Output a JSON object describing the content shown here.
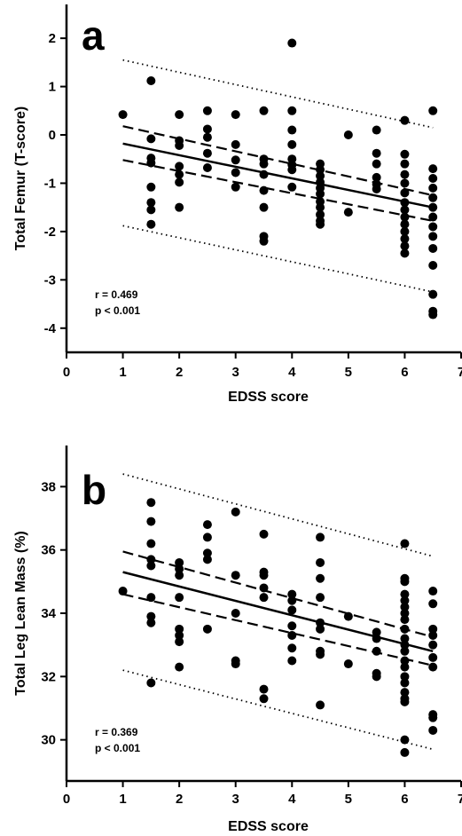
{
  "chart_data": [
    {
      "type": "scatter",
      "panel_label": "a",
      "xlabel": "EDSS score",
      "ylabel": "Total Femur (T-score)",
      "xlim": [
        0,
        7
      ],
      "ylim": [
        -4.5,
        2.7
      ],
      "xticks": [
        0,
        1,
        2,
        3,
        4,
        5,
        6,
        7
      ],
      "yticks": [
        -4,
        -3,
        -2,
        -1,
        0,
        1,
        2
      ],
      "grid": false,
      "annotation_r": "r = 0.469",
      "annotation_p": "p < 0.001",
      "points": [
        [
          1,
          0.42
        ],
        [
          1.5,
          1.12
        ],
        [
          1.5,
          -0.08
        ],
        [
          1.5,
          -0.48
        ],
        [
          1.5,
          -0.58
        ],
        [
          1.5,
          -1.08
        ],
        [
          1.5,
          -1.4
        ],
        [
          1.5,
          -1.55
        ],
        [
          1.5,
          -1.85
        ],
        [
          2,
          0.42
        ],
        [
          2,
          -0.12
        ],
        [
          2,
          -0.22
        ],
        [
          2,
          -0.65
        ],
        [
          2,
          -0.82
        ],
        [
          2,
          -0.98
        ],
        [
          2,
          -1.5
        ],
        [
          2.5,
          0.5
        ],
        [
          2.5,
          0.12
        ],
        [
          2.5,
          -0.05
        ],
        [
          2.5,
          -0.38
        ],
        [
          2.5,
          -0.68
        ],
        [
          3,
          0.42
        ],
        [
          3,
          -0.2
        ],
        [
          3,
          -0.52
        ],
        [
          3,
          -0.78
        ],
        [
          3,
          -1.08
        ],
        [
          3.5,
          0.5
        ],
        [
          3.5,
          -0.5
        ],
        [
          3.5,
          -0.6
        ],
        [
          3.5,
          -0.82
        ],
        [
          3.5,
          -1.15
        ],
        [
          3.5,
          -1.5
        ],
        [
          3.5,
          -2.1
        ],
        [
          3.5,
          -2.2
        ],
        [
          4,
          1.9
        ],
        [
          4,
          0.5
        ],
        [
          4,
          0.1
        ],
        [
          4,
          -0.2
        ],
        [
          4,
          -0.5
        ],
        [
          4,
          -0.62
        ],
        [
          4,
          -0.72
        ],
        [
          4,
          -1.08
        ],
        [
          4.5,
          -0.6
        ],
        [
          4.5,
          -0.72
        ],
        [
          4.5,
          -0.85
        ],
        [
          4.5,
          -0.98
        ],
        [
          4.5,
          -1.1
        ],
        [
          4.5,
          -1.22
        ],
        [
          4.5,
          -1.38
        ],
        [
          4.5,
          -1.5
        ],
        [
          4.5,
          -1.65
        ],
        [
          4.5,
          -1.78
        ],
        [
          4.5,
          -1.85
        ],
        [
          5,
          0.0
        ],
        [
          5,
          -1.6
        ],
        [
          5.5,
          0.1
        ],
        [
          5.5,
          -0.38
        ],
        [
          5.5,
          -0.6
        ],
        [
          5.5,
          -0.88
        ],
        [
          5.5,
          -1.02
        ],
        [
          5.5,
          -1.12
        ],
        [
          6,
          0.3
        ],
        [
          6,
          -0.4
        ],
        [
          6,
          -0.6
        ],
        [
          6,
          -0.82
        ],
        [
          6,
          -1.0
        ],
        [
          6,
          -1.2
        ],
        [
          6,
          -1.4
        ],
        [
          6,
          -1.55
        ],
        [
          6,
          -1.7
        ],
        [
          6,
          -1.85
        ],
        [
          6,
          -2.0
        ],
        [
          6,
          -2.15
        ],
        [
          6,
          -2.3
        ],
        [
          6,
          -2.45
        ],
        [
          6.5,
          0.5
        ],
        [
          6.5,
          -0.7
        ],
        [
          6.5,
          -0.9
        ],
        [
          6.5,
          -1.1
        ],
        [
          6.5,
          -1.3
        ],
        [
          6.5,
          -1.5
        ],
        [
          6.5,
          -1.7
        ],
        [
          6.5,
          -1.9
        ],
        [
          6.5,
          -2.1
        ],
        [
          6.5,
          -2.35
        ],
        [
          6.5,
          -2.7
        ],
        [
          6.5,
          -3.3
        ],
        [
          6.5,
          -3.65
        ],
        [
          6.5,
          -3.72
        ]
      ],
      "regression": {
        "x": [
          1,
          6.5
        ],
        "y": [
          -0.18,
          -1.5
        ]
      },
      "confidence_upper": {
        "x": [
          1,
          6.5
        ],
        "y": [
          0.18,
          -1.25
        ]
      },
      "confidence_lower": {
        "x": [
          1,
          6.5
        ],
        "y": [
          -0.52,
          -1.78
        ]
      },
      "prediction_upper": {
        "x": [
          1,
          6.5
        ],
        "y": [
          1.55,
          0.15
        ]
      },
      "prediction_lower": {
        "x": [
          1,
          6.5
        ],
        "y": [
          -1.88,
          -3.25
        ]
      }
    },
    {
      "type": "scatter",
      "panel_label": "b",
      "xlabel": "EDSS score",
      "ylabel": "Total Leg Lean Mass (%)",
      "xlim": [
        0,
        7
      ],
      "ylim": [
        28.7,
        39.3
      ],
      "xticks": [
        0,
        1,
        2,
        3,
        4,
        5,
        6,
        7
      ],
      "yticks": [
        30,
        32,
        34,
        36,
        38
      ],
      "grid": false,
      "annotation_r": "r = 0.369",
      "annotation_p": "p < 0.001",
      "points": [
        [
          1,
          34.7
        ],
        [
          1.5,
          37.5
        ],
        [
          1.5,
          36.9
        ],
        [
          1.5,
          36.2
        ],
        [
          1.5,
          35.7
        ],
        [
          1.5,
          35.5
        ],
        [
          1.5,
          34.5
        ],
        [
          1.5,
          33.9
        ],
        [
          1.5,
          33.7
        ],
        [
          1.5,
          31.8
        ],
        [
          2,
          35.6
        ],
        [
          2,
          35.4
        ],
        [
          2,
          35.2
        ],
        [
          2,
          34.5
        ],
        [
          2,
          33.5
        ],
        [
          2,
          33.3
        ],
        [
          2,
          33.1
        ],
        [
          2,
          32.3
        ],
        [
          2.5,
          36.8
        ],
        [
          2.5,
          36.4
        ],
        [
          2.5,
          35.9
        ],
        [
          2.5,
          35.7
        ],
        [
          2.5,
          33.5
        ],
        [
          3,
          37.2
        ],
        [
          3,
          35.2
        ],
        [
          3,
          34.0
        ],
        [
          3,
          32.5
        ],
        [
          3,
          32.4
        ],
        [
          3.5,
          36.5
        ],
        [
          3.5,
          35.3
        ],
        [
          3.5,
          35.2
        ],
        [
          3.5,
          34.8
        ],
        [
          3.5,
          34.5
        ],
        [
          3.5,
          31.6
        ],
        [
          3.5,
          31.3
        ],
        [
          4,
          34.6
        ],
        [
          4,
          34.4
        ],
        [
          4,
          34.1
        ],
        [
          4,
          33.6
        ],
        [
          4,
          33.3
        ],
        [
          4,
          32.9
        ],
        [
          4,
          32.5
        ],
        [
          4.5,
          36.4
        ],
        [
          4.5,
          35.6
        ],
        [
          4.5,
          35.1
        ],
        [
          4.5,
          34.5
        ],
        [
          4.5,
          33.7
        ],
        [
          4.5,
          33.5
        ],
        [
          4.5,
          32.8
        ],
        [
          4.5,
          32.7
        ],
        [
          4.5,
          31.1
        ],
        [
          5,
          33.9
        ],
        [
          5,
          32.4
        ],
        [
          5.5,
          33.4
        ],
        [
          5.5,
          33.2
        ],
        [
          5.5,
          32.8
        ],
        [
          5.5,
          32.0
        ],
        [
          5.5,
          32.1
        ],
        [
          6,
          36.2
        ],
        [
          6,
          35.1
        ],
        [
          6,
          35.0
        ],
        [
          6,
          34.6
        ],
        [
          6,
          34.4
        ],
        [
          6,
          34.2
        ],
        [
          6,
          34.0
        ],
        [
          6,
          33.8
        ],
        [
          6,
          33.5
        ],
        [
          6,
          33.2
        ],
        [
          6,
          33.0
        ],
        [
          6,
          32.8
        ],
        [
          6,
          32.5
        ],
        [
          6,
          32.3
        ],
        [
          6,
          32.0
        ],
        [
          6,
          31.8
        ],
        [
          6,
          31.5
        ],
        [
          6,
          31.3
        ],
        [
          6,
          31.2
        ],
        [
          6,
          30.0
        ],
        [
          6,
          29.6
        ],
        [
          6.5,
          34.7
        ],
        [
          6.5,
          34.3
        ],
        [
          6.5,
          33.5
        ],
        [
          6.5,
          33.3
        ],
        [
          6.5,
          33.0
        ],
        [
          6.5,
          32.6
        ],
        [
          6.5,
          32.3
        ],
        [
          6.5,
          30.8
        ],
        [
          6.5,
          30.7
        ],
        [
          6.5,
          30.3
        ]
      ],
      "regression": {
        "x": [
          1,
          6.5
        ],
        "y": [
          35.3,
          32.8
        ]
      },
      "confidence_upper": {
        "x": [
          1,
          6.5
        ],
        "y": [
          35.95,
          33.25
        ]
      },
      "confidence_lower": {
        "x": [
          1,
          6.5
        ],
        "y": [
          34.6,
          32.35
        ]
      },
      "prediction_upper": {
        "x": [
          1,
          6.5
        ],
        "y": [
          38.4,
          35.8
        ]
      },
      "prediction_lower": {
        "x": [
          1,
          6.5
        ],
        "y": [
          32.2,
          29.7
        ]
      }
    }
  ]
}
